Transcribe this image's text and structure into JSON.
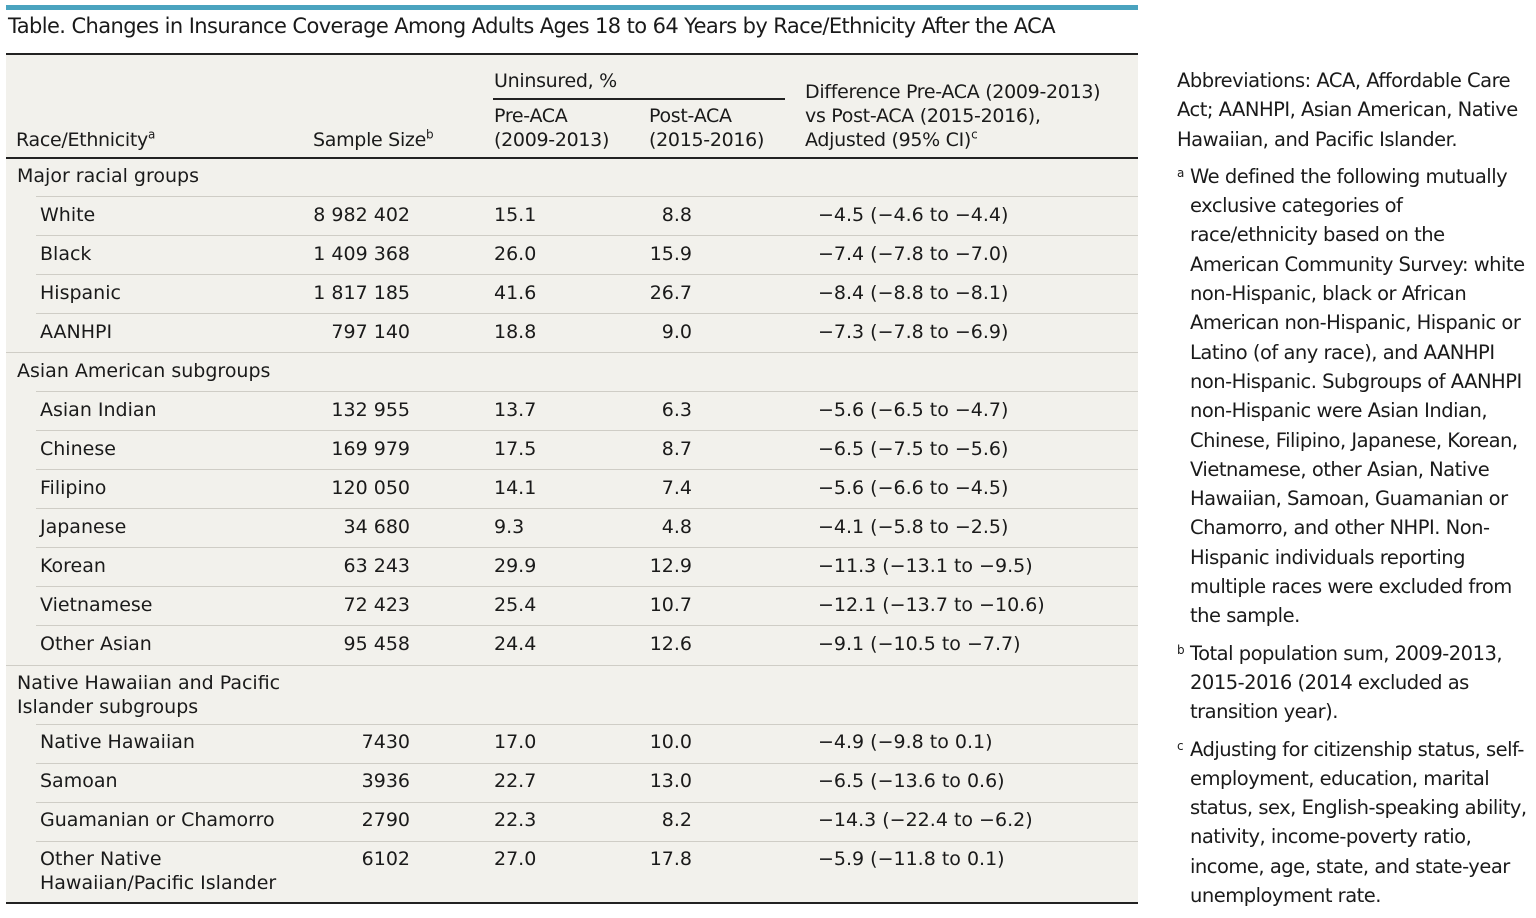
{
  "title": "Table. Changes in Insurance Coverage Among Adults Ages 18 to 64 Years by Race/Ethnicity After the ACA",
  "columns": {
    "race": "Race/Ethnicity",
    "race_mark": "a",
    "size": "Sample Size",
    "size_mark": "b",
    "uninsured": "Uninsured, %",
    "pre_line1": "Pre-ACA",
    "pre_line2": "(2009-2013)",
    "post_line1": "Post-ACA",
    "post_line2": "(2015-2016)",
    "diff_line1": "Difference Pre-ACA (2009-2013)",
    "diff_line2": "vs Post-ACA (2015-2016),",
    "diff_line3": "Adjusted (95% CI)",
    "diff_mark": "c"
  },
  "groups": [
    {
      "label": "Major racial groups"
    },
    {
      "label": "Asian American subgroups"
    },
    {
      "label_line1": "Native Hawaiian and Pacific",
      "label_line2": "Islander subgroups"
    }
  ],
  "rows": [
    {
      "name": "White",
      "size": "8 982 402",
      "pre": "15.1",
      "post": "8.8",
      "diff": "−4.5 (−4.6 to −4.4)"
    },
    {
      "name": "Black",
      "size": "1 409 368",
      "pre": "26.0",
      "post": "15.9",
      "diff": "−7.4 (−7.8 to −7.0)"
    },
    {
      "name": "Hispanic",
      "size": "1 817 185",
      "pre": "41.6",
      "post": "26.7",
      "diff": "−8.4 (−8.8 to −8.1)"
    },
    {
      "name": "AANHPI",
      "size": "797 140",
      "pre": "18.8",
      "post": "9.0",
      "diff": "−7.3 (−7.8 to −6.9)"
    },
    {
      "name": "Asian Indian",
      "size": "132 955",
      "pre": "13.7",
      "post": "6.3",
      "diff": "−5.6 (−6.5 to −4.7)"
    },
    {
      "name": "Chinese",
      "size": "169 979",
      "pre": "17.5",
      "post": "8.7",
      "diff": "−6.5 (−7.5 to −5.6)"
    },
    {
      "name": "Filipino",
      "size": "120 050",
      "pre": "14.1",
      "post": "7.4",
      "diff": "−5.6 (−6.6 to −4.5)"
    },
    {
      "name": "Japanese",
      "size": "34 680",
      "pre": "9.3",
      "post": "4.8",
      "diff": "−4.1 (−5.8 to −2.5)"
    },
    {
      "name": "Korean",
      "size": "63 243",
      "pre": "29.9",
      "post": "12.9",
      "diff": "−11.3 (−13.1 to −9.5)"
    },
    {
      "name": "Vietnamese",
      "size": "72 423",
      "pre": "25.4",
      "post": "10.7",
      "diff": "−12.1 (−13.7 to −10.6)"
    },
    {
      "name": "Other Asian",
      "size": "95 458",
      "pre": "24.4",
      "post": "12.6",
      "diff": "−9.1 (−10.5 to −7.7)"
    },
    {
      "name": "Native Hawaiian",
      "size": "7430",
      "pre": "17.0",
      "post": "10.0",
      "diff": "−4.9 (−9.8 to 0.1)"
    },
    {
      "name": "Samoan",
      "size": "3936",
      "pre": "22.7",
      "post": "13.0",
      "diff": "−6.5 (−13.6 to 0.6)"
    },
    {
      "name": "Guamanian or Chamorro",
      "size": "2790",
      "pre": "22.3",
      "post": "8.2",
      "diff": "−14.3 (−22.4 to −6.2)"
    },
    {
      "name_line1": "Other Native",
      "name_line2": "Hawaiian/Pacific Islander",
      "size": "6102",
      "pre": "27.0",
      "post": "17.8",
      "diff": "−5.9 (−11.8 to 0.1)"
    }
  ],
  "notes": {
    "abbreviations": "Abbreviations: ACA, Affordable Care Act; AANHPI, Asian American, Native Hawaiian, and Pacific Islander.",
    "a_mark": "a",
    "a": "We defined the following mutually exclusive categories of race/ethnicity based on the American Community Survey: white non-Hispanic, black or African American non-Hispanic, Hispanic or Latino (of any race), and AANHPI non-Hispanic. Subgroups of AANHPI non-Hispanic were Asian Indian, Chinese, Filipino, Japanese, Korean, Vietnamese, other Asian, Native Hawaiian, Samoan, Guamanian or Chamorro, and other NHPI. Non-Hispanic individuals reporting multiple races were excluded from the sample.",
    "b_mark": "b",
    "b": "Total population sum, 2009-2013, 2015-2016 (2014 excluded as transition year).",
    "c_mark": "c",
    "c": "Adjusting for citizenship status, self-employment, education, marital status, sex, English-speaking ability, nativity, income-poverty ratio, income, age, state, and state-year unemployment rate."
  }
}
